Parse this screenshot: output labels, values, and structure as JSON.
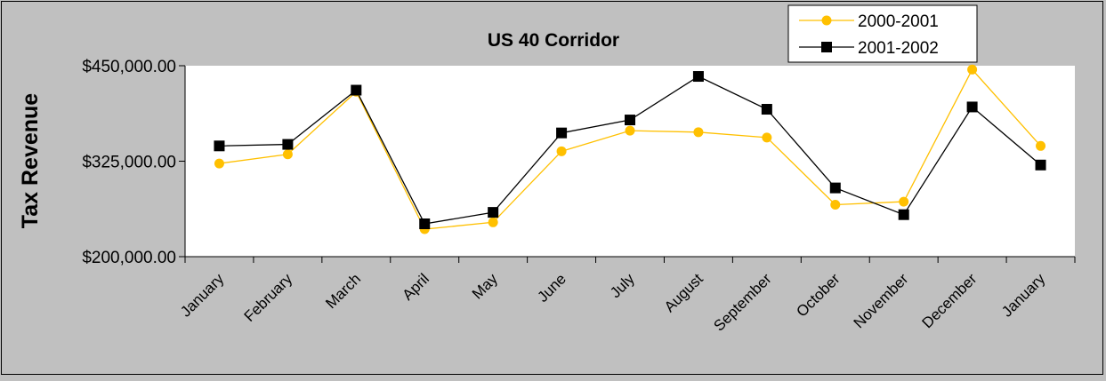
{
  "chart_data": {
    "type": "line",
    "title": "US 40 Corridor",
    "xlabel": "",
    "ylabel": "Tax Revenue",
    "categories": [
      "January",
      "February",
      "March",
      "April",
      "May",
      "June",
      "July",
      "August",
      "September",
      "October",
      "November",
      "December",
      "January"
    ],
    "y_ticks": [
      "$200,000.00",
      "$325,000.00",
      "$450,000.00"
    ],
    "y_tick_values": [
      200000,
      325000,
      450000
    ],
    "ylim": [
      200000,
      450000
    ],
    "legend_position": "top-right",
    "grid": false,
    "series": [
      {
        "name": "2000-2001",
        "color": "#ffc000",
        "marker": "circle",
        "values": [
          322000,
          334000,
          416000,
          236000,
          245000,
          338000,
          365000,
          363000,
          356000,
          268000,
          272000,
          445000,
          345000
        ]
      },
      {
        "name": "2001-2002",
        "color": "#000000",
        "marker": "square",
        "values": [
          345000,
          347000,
          418000,
          243000,
          258000,
          362000,
          379000,
          436000,
          393000,
          290000,
          255000,
          396000,
          320000
        ]
      }
    ]
  }
}
